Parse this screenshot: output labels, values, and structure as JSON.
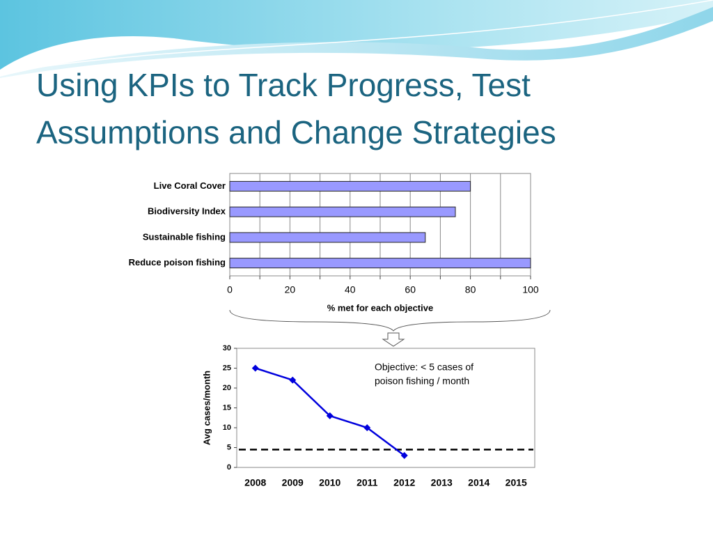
{
  "title": "Using KPIs to Track Progress, Test Assumptions and Change Strategies",
  "chart_data": [
    {
      "type": "hbar",
      "categories": [
        "Live Coral Cover",
        "Biodiversity Index",
        "Sustainable fishing",
        "Reduce poison fishing"
      ],
      "values": [
        80,
        75,
        65,
        100
      ],
      "color": "#9999ff",
      "xlim": [
        0,
        100
      ],
      "xticks": [
        0,
        20,
        40,
        60,
        80,
        100
      ],
      "xminor": [
        10,
        30,
        50,
        70,
        90
      ],
      "xlabel": "% met for each objective",
      "grid": true
    },
    {
      "type": "line",
      "categories": [
        "2008",
        "2009",
        "2010",
        "2011",
        "2012",
        "2013",
        "2014",
        "2015"
      ],
      "values": [
        25,
        22,
        13,
        10,
        3,
        null,
        null,
        null
      ],
      "color": "#0000dd",
      "ylim": [
        0,
        30
      ],
      "yticks": [
        0,
        5,
        10,
        15,
        20,
        25,
        30
      ],
      "ylabel": "Avg cases/month",
      "reference_line": 4.5,
      "annotation": [
        "Objective: < 5 cases of",
        "poison fishing / month"
      ]
    }
  ]
}
